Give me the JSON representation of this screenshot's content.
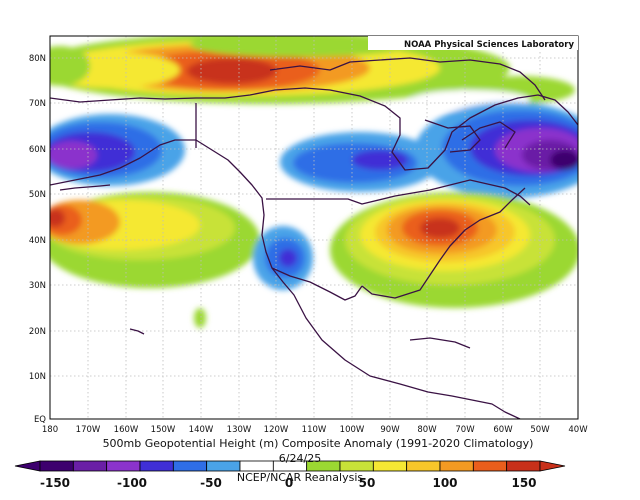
{
  "credit": "NOAA Physical Sciences Laboratory",
  "caption": "500mb Geopotential Height (m) Composite Anomaly (1991-2020 Climatology)",
  "date": "6/24/25",
  "source": "NCEP/NCAR Reanalysis",
  "lat_labels": [
    "EQ",
    "10N",
    "20N",
    "30N",
    "40N",
    "50N",
    "60N",
    "70N",
    "80N"
  ],
  "lon_labels": [
    "180",
    "170W",
    "160W",
    "150W",
    "140W",
    "130W",
    "120W",
    "110W",
    "100W",
    "90W",
    "80W",
    "70W",
    "60W",
    "50W",
    "40W"
  ],
  "colorbar": {
    "labels": [
      "-150",
      "-100",
      "-50",
      "0",
      "50",
      "100",
      "150"
    ],
    "colors": [
      "#3d006e",
      "#6a1fa6",
      "#8b33cc",
      "#3f2fd6",
      "#2f6ee6",
      "#4aa3e8",
      "#ffffff",
      "#ffffff",
      "#9bd832",
      "#c8e238",
      "#f5e833",
      "#f7c62a",
      "#f39a22",
      "#ea5e1c",
      "#c8301a"
    ]
  },
  "chart_data": {
    "type": "heatmap",
    "title": "500mb Geopotential Height (m) Composite Anomaly (1991-2020 Climatology)",
    "xlabel": "",
    "ylabel": "",
    "xlim": [
      "180",
      "40W"
    ],
    "ylim": [
      "EQ",
      "80N"
    ],
    "color_range": [
      -150,
      150
    ],
    "features": [
      {
        "region": "Arctic north of Alaska/Canada (~75-80N, 145-130W)",
        "sign": "positive",
        "peak_m": 130
      },
      {
        "region": "Eastern United States / Great Lakes (~35-45N, 90-70W)",
        "sign": "positive",
        "peak_m": 120
      },
      {
        "region": "Central Pacific (~45N, 180-165W)",
        "sign": "positive",
        "peak_m": 110
      },
      {
        "region": "Labrador Sea / Davis Strait (~55-60N, 70-45W)",
        "sign": "negative",
        "peak_m": -140
      },
      {
        "region": "Gulf of Alaska / Bering Sea (~55-60N, 180-155W)",
        "sign": "negative",
        "peak_m": -90
      },
      {
        "region": "Southern California coast (~32-37N, 120-115W)",
        "sign": "negative",
        "peak_m": -70
      },
      {
        "region": "Hudson Bay (~58N, 100-85W)",
        "sign": "negative",
        "peak_m": -60
      }
    ]
  }
}
